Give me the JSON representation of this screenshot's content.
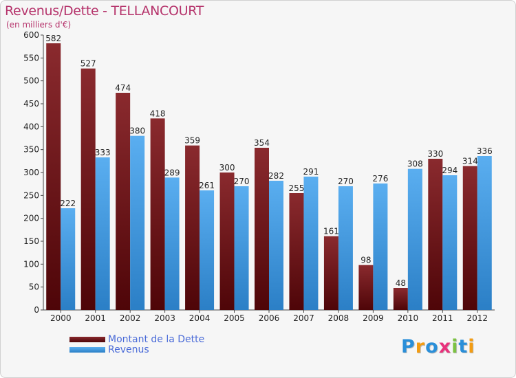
{
  "header": {
    "title": "Revenus/Dette - TELLANCOURT",
    "subtitle": "(en milliers d'€)"
  },
  "legend": {
    "items": [
      {
        "label": "Montant de la Dette",
        "color": "#6b0f14"
      },
      {
        "label": "Revenus",
        "color": "#3d9ae0"
      }
    ]
  },
  "logo": {
    "text": "Proxiti",
    "letters": [
      {
        "ch": "P",
        "color": "#2a8fd9"
      },
      {
        "ch": "r",
        "color": "#f39c12"
      },
      {
        "ch": "o",
        "color": "#2a8fd9"
      },
      {
        "ch": "x",
        "color": "#e8327c"
      },
      {
        "ch": "i",
        "color": "#7cc242"
      },
      {
        "ch": "t",
        "color": "#2a8fd9"
      },
      {
        "ch": "i",
        "color": "#f39c12"
      }
    ]
  },
  "chart_data": {
    "type": "bar",
    "title": "Revenus/Dette - TELLANCOURT",
    "subtitle": "(en milliers d'€)",
    "categories": [
      "2000",
      "2001",
      "2002",
      "2003",
      "2004",
      "2005",
      "2006",
      "2007",
      "2008",
      "2009",
      "2010",
      "2011",
      "2012"
    ],
    "series": [
      {
        "name": "Montant de la Dette",
        "values": [
          582,
          527,
          474,
          418,
          359,
          300,
          354,
          255,
          161,
          98,
          48,
          330,
          314
        ],
        "color": "#7a1a1e"
      },
      {
        "name": "Revenus",
        "values": [
          222,
          333,
          380,
          289,
          261,
          270,
          282,
          291,
          270,
          276,
          308,
          294,
          336
        ],
        "color": "#3d9ae0"
      }
    ],
    "ylim": [
      0,
      600
    ],
    "yticks": [
      0,
      50,
      100,
      150,
      200,
      250,
      300,
      350,
      400,
      450,
      500,
      550,
      600
    ],
    "grid": false,
    "legend_position": "bottom-left"
  }
}
